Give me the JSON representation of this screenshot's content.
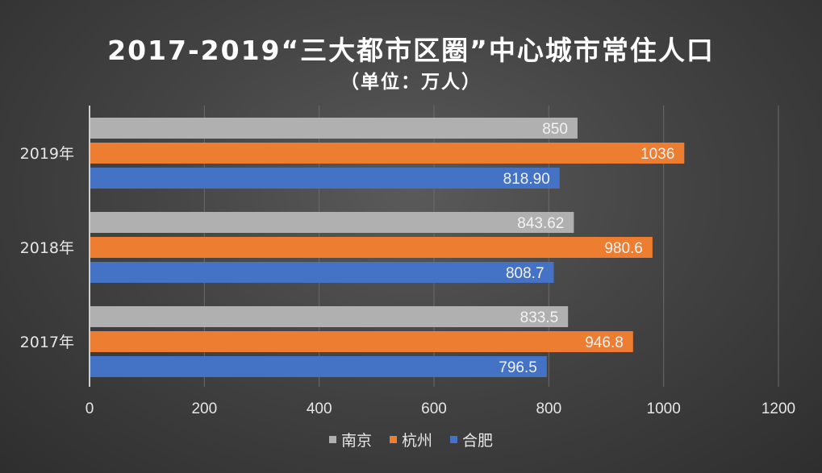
{
  "title": "2017-2019“三大都市区圈”中心城市常住人口",
  "subtitle": "（单位：万人）",
  "colors": {
    "nanjing": "#b0b0b0",
    "hangzhou": "#ed7d31",
    "hefei": "#4472c4",
    "gridline": "#6a6a6a",
    "axis": "#cfcfcf",
    "label": "#e6e6e6"
  },
  "chart_data": {
    "type": "bar",
    "orientation": "horizontal",
    "categories": [
      "2019年",
      "2018年",
      "2017年"
    ],
    "series": [
      {
        "name": "南京",
        "color": "#b0b0b0",
        "values": [
          850,
          843.62,
          833.5
        ],
        "labels": [
          "850",
          "843.62",
          "833.5"
        ]
      },
      {
        "name": "杭州",
        "color": "#ed7d31",
        "values": [
          1036,
          980.6,
          946.8
        ],
        "labels": [
          "1036",
          "980.6",
          "946.8"
        ]
      },
      {
        "name": "合肥",
        "color": "#4472c4",
        "values": [
          818.9,
          808.7,
          796.5
        ],
        "labels": [
          "818.90",
          "808.7",
          "796.5"
        ]
      }
    ],
    "xlim": [
      0,
      1200
    ],
    "xticks": [
      0,
      200,
      400,
      600,
      800,
      1000,
      1200
    ],
    "grid": true,
    "legend_position": "bottom"
  }
}
